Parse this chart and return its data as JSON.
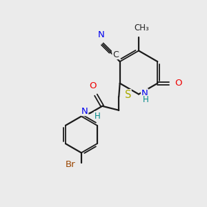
{
  "background_color": "#ebebeb",
  "bond_color": "#1a1a1a",
  "atom_colors": {
    "N": "#0000ee",
    "O": "#ee0000",
    "S": "#aaaa00",
    "Br": "#994400",
    "N_cyano": "#0000ee",
    "H": "#008888"
  },
  "figsize": [
    3.0,
    3.0
  ],
  "dpi": 100
}
